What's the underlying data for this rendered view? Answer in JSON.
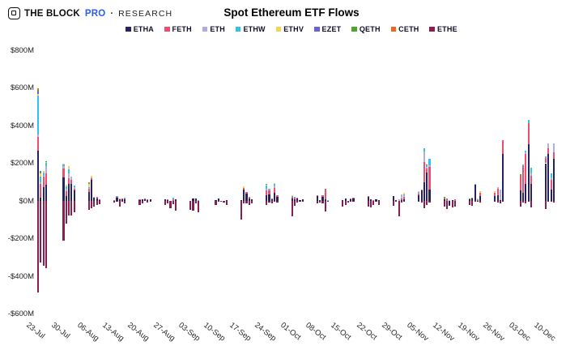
{
  "header": {
    "brand_block": "THE BLOCK",
    "brand_pro": "PRO",
    "brand_separator": "·",
    "brand_research": "RESEARCH"
  },
  "chart_data": {
    "type": "bar",
    "variant": "stacked-daily-flows",
    "title": "Spot Ethereum ETF Flows",
    "unit": "USD millions",
    "grid": false,
    "legend_position": "top-center",
    "ylim": [
      -600,
      800
    ],
    "y_ticks": [
      {
        "value": 800,
        "label": "$800M"
      },
      {
        "value": 600,
        "label": "$600M"
      },
      {
        "value": 400,
        "label": "$400M"
      },
      {
        "value": 200,
        "label": "$200M"
      },
      {
        "value": 0,
        "label": "$0M"
      },
      {
        "value": -200,
        "label": "-$200M"
      },
      {
        "value": -400,
        "label": "-$400M"
      },
      {
        "value": -600,
        "label": "-$600M"
      }
    ],
    "series": [
      {
        "name": "ETHA",
        "color": "#262262"
      },
      {
        "name": "FETH",
        "color": "#ee4d6e"
      },
      {
        "name": "ETH",
        "color": "#b3ace1"
      },
      {
        "name": "ETHW",
        "color": "#2fc1f1"
      },
      {
        "name": "ETHV",
        "color": "#f6d54a"
      },
      {
        "name": "EZET",
        "color": "#6a63cf"
      },
      {
        "name": "QETH",
        "color": "#4ca62a"
      },
      {
        "name": "CETH",
        "color": "#f26522"
      },
      {
        "name": "ETHE",
        "color": "#8c1d4e"
      }
    ],
    "weeks": [
      {
        "label": "23-Jul",
        "bars": [
          [
            266.5,
            71.3,
            15.2,
            204,
            10.7,
            13.2,
            10.2,
            7.5,
            -484.9
          ],
          [
            17.4,
            74.5,
            7.8,
            29.6,
            19.8,
            2.5,
            5.7,
            0,
            -326.9
          ],
          [
            71,
            58.3,
            5,
            16.3,
            8,
            0,
            0,
            0,
            -346.2
          ],
          [
            87.2,
            58.1,
            39,
            16,
            5,
            0,
            4,
            0,
            -356.3
          ]
        ]
      },
      {
        "label": "30-Jul",
        "bars": [
          [
            124.1,
            46.2,
            13.3,
            10.1,
            4,
            0,
            0,
            0,
            -210
          ],
          [
            26,
            25,
            15,
            10,
            8,
            0,
            0,
            0,
            -120.3
          ],
          [
            89.6,
            31.8,
            25,
            20.2,
            17.9,
            0,
            0,
            0,
            -78
          ],
          [
            89.7,
            22.9,
            15,
            0,
            0,
            0,
            0,
            0,
            -78
          ],
          [
            54.9,
            10,
            10,
            5,
            0,
            0,
            0,
            0,
            -61.4
          ]
        ]
      },
      {
        "label": "06-Aug",
        "bars": [
          [
            47.1,
            16.2,
            7.6,
            2.9,
            16.6,
            0,
            4.7,
            1.7,
            -46.8
          ],
          [
            109.9,
            11.7,
            4,
            0,
            7.6,
            0,
            0,
            0,
            -39.7
          ],
          [
            17,
            0,
            5,
            0,
            0,
            0,
            0,
            0,
            -31.9
          ],
          [
            15,
            6,
            0,
            0,
            0,
            0,
            0,
            0,
            -20
          ],
          [
            5,
            2,
            0,
            0,
            0,
            0,
            0,
            0,
            -15.5
          ]
        ]
      },
      {
        "label": "13-Aug",
        "bars": [
          [
            4,
            2,
            0,
            0,
            0,
            0,
            0,
            0,
            -10
          ],
          [
            16.2,
            8.1,
            0,
            2,
            0,
            0,
            0,
            0,
            -2
          ],
          [
            10,
            0,
            3,
            0,
            0,
            0,
            0,
            0,
            -31
          ],
          [
            10.8,
            3,
            0,
            0,
            0,
            0,
            0,
            0,
            -5
          ],
          [
            9.4,
            5.3,
            0,
            2,
            0,
            0,
            0,
            0,
            -14
          ]
        ]
      },
      {
        "label": "20-Aug",
        "bars": [
          [
            5,
            2,
            0,
            0,
            0,
            0,
            0,
            0,
            -20.5
          ],
          [
            6.8,
            0,
            0,
            0,
            0,
            0,
            0,
            0,
            -13.3
          ],
          [
            9,
            6,
            0,
            0,
            0,
            0,
            0,
            0,
            0
          ],
          [
            8,
            2,
            0,
            0,
            0,
            0,
            0,
            0,
            -9.2
          ],
          [
            7.2,
            0,
            0,
            0,
            0,
            0,
            0,
            0,
            -1.4
          ]
        ]
      },
      {
        "label": "27-Aug",
        "bars": [
          [
            8.5,
            0,
            0,
            0,
            0,
            0,
            0,
            0,
            -21.7
          ],
          [
            5,
            4,
            0,
            0,
            0,
            0,
            0,
            0,
            -12.4
          ],
          [
            0,
            0,
            0,
            0,
            0,
            0,
            0,
            0,
            -37.5
          ],
          [
            0,
            10,
            0,
            5.9,
            0,
            0,
            0,
            0,
            -17.7
          ],
          [
            8.4,
            0,
            0,
            0,
            0,
            0,
            0,
            0,
            -52.3
          ]
        ]
      },
      {
        "label": "03-Sep",
        "bars": [
          [
            0,
            0,
            0,
            0,
            0,
            0,
            0,
            0,
            -47.4
          ],
          [
            14.6,
            0,
            0,
            0,
            0,
            0,
            0,
            0,
            -52.1
          ],
          [
            12.5,
            0,
            0,
            0,
            0,
            0,
            0,
            0,
            -12.9
          ],
          [
            0,
            0,
            0,
            4.2,
            0,
            0,
            0,
            0,
            -60.3
          ]
        ]
      },
      {
        "label": "10-Sep",
        "bars": [
          [
            4,
            0,
            0,
            0,
            0,
            0,
            0,
            0,
            -22.6
          ],
          [
            11.4,
            0,
            0,
            0,
            0,
            0,
            0,
            0,
            -5
          ],
          [
            0,
            0,
            0,
            0,
            0,
            0,
            0,
            0,
            -0.5
          ],
          [
            0,
            0,
            0,
            0,
            0,
            0,
            0,
            0,
            -9.7
          ],
          [
            5,
            0,
            0,
            0,
            0,
            0,
            0,
            0,
            -20.1
          ]
        ]
      },
      {
        "label": "17-Sep",
        "bars": [
          [
            5,
            0,
            0,
            0,
            0,
            0,
            0,
            0,
            -98
          ],
          [
            60,
            10,
            0,
            0,
            6,
            0,
            0,
            0,
            -15
          ],
          [
            40,
            8,
            0,
            0,
            0,
            0,
            0,
            0,
            -15
          ],
          [
            15,
            5,
            0,
            0,
            0,
            0,
            0,
            0,
            -20
          ],
          [
            10,
            0,
            0,
            0,
            0,
            0,
            0,
            0,
            -12
          ]
        ]
      },
      {
        "label": "24-Sep",
        "bars": [
          [
            30,
            25,
            10,
            15,
            5,
            0,
            5,
            0,
            -21
          ],
          [
            35,
            20,
            5,
            3,
            0,
            0,
            0,
            0,
            -10
          ],
          [
            10,
            5,
            0,
            0,
            0,
            0,
            0,
            0,
            -15
          ],
          [
            45,
            25,
            10,
            10,
            5,
            0,
            0,
            0,
            -3
          ],
          [
            20,
            8,
            0,
            0,
            0,
            0,
            0,
            0,
            -10
          ]
        ]
      },
      {
        "label": "01-Oct",
        "bars": [
          [
            15,
            5,
            0,
            5,
            3,
            0,
            0,
            0,
            -80.6
          ],
          [
            10,
            8,
            0,
            5,
            0,
            0,
            0,
            0,
            -26.6
          ],
          [
            12,
            6,
            0,
            0,
            0,
            0,
            0,
            0,
            -10
          ],
          [
            5,
            0,
            0,
            0,
            0,
            0,
            0,
            0,
            -3.2
          ],
          [
            7.4,
            0,
            0,
            0,
            0,
            0,
            0,
            0,
            -5
          ]
        ]
      },
      {
        "label": "08-Oct",
        "bars": [
          [
            25,
            5,
            0,
            0,
            0,
            0,
            0,
            0,
            -15
          ],
          [
            3,
            0,
            0,
            0,
            0,
            0,
            0,
            0,
            -8.2
          ],
          [
            20,
            10,
            0,
            0,
            0,
            0,
            0,
            0,
            -12
          ],
          [
            10,
            55,
            0,
            0,
            0,
            0,
            0,
            0,
            -57
          ],
          [
            0,
            0,
            0,
            5,
            0,
            0,
            0,
            0,
            -2
          ]
        ]
      },
      {
        "label": "15-Oct",
        "bars": [
          [
            5,
            0,
            0,
            0,
            0,
            0,
            0,
            0,
            -30
          ],
          [
            15,
            0,
            0,
            0,
            0,
            0,
            0,
            0,
            -20
          ],
          [
            0,
            0,
            0,
            0,
            0,
            0,
            0,
            0,
            -8
          ],
          [
            12,
            3,
            0,
            0,
            0,
            0,
            0,
            0,
            -5
          ],
          [
            15,
            3,
            0,
            0,
            0,
            0,
            0,
            0,
            -2
          ]
        ]
      },
      {
        "label": "22-Oct",
        "bars": [
          [
            20,
            5,
            0,
            0,
            0,
            0,
            0,
            0,
            -29
          ],
          [
            10,
            0,
            0,
            0,
            0,
            0,
            0,
            0,
            -34
          ],
          [
            0,
            5,
            0,
            0,
            0,
            0,
            0,
            0,
            -20
          ],
          [
            10,
            0,
            0,
            0,
            0,
            0,
            0,
            0,
            -5
          ],
          [
            5,
            0,
            0,
            0,
            0,
            0,
            0,
            0,
            -20
          ]
        ]
      },
      {
        "label": "29-Oct",
        "bars": [
          [
            25,
            0,
            0,
            0,
            0,
            0,
            0,
            0,
            -25
          ],
          [
            3,
            0,
            0,
            0,
            0,
            0,
            0,
            0,
            -5
          ],
          [
            0,
            0,
            10,
            0,
            0,
            0,
            0,
            0,
            -80
          ],
          [
            5,
            10,
            20,
            0,
            0,
            0,
            0,
            0,
            -10
          ],
          [
            10,
            10,
            10,
            5,
            8,
            0,
            0,
            0,
            -5
          ]
        ]
      },
      {
        "label": "05-Nov",
        "bars": [
          [
            30,
            8,
            5,
            3,
            6,
            0,
            0,
            0,
            -6
          ],
          [
            55,
            5,
            0,
            0,
            0,
            0,
            0,
            0,
            -8
          ],
          [
            100,
            107,
            57,
            17,
            0,
            0,
            0,
            0,
            -37
          ],
          [
            150,
            20,
            10,
            8,
            0,
            0,
            0,
            5,
            -23
          ],
          [
            60,
            120,
            10,
            35,
            0,
            0,
            0,
            0,
            -10
          ]
        ]
      },
      {
        "label": "12-Nov",
        "bars": [
          [
            10,
            5,
            0,
            0,
            0,
            0,
            5,
            0,
            -32
          ],
          [
            0,
            15,
            0,
            0,
            0,
            0,
            0,
            0,
            -45
          ],
          [
            -22,
            0,
            5,
            0,
            0,
            0,
            0,
            0,
            -3
          ],
          [
            5,
            0,
            0,
            0,
            0,
            0,
            0,
            0,
            -35
          ],
          [
            0,
            8,
            0,
            0,
            0,
            0,
            0,
            0,
            -28
          ]
        ]
      },
      {
        "label": "19-Nov",
        "bars": [
          [
            8,
            0,
            0,
            0,
            0,
            0,
            4,
            0,
            -20
          ],
          [
            15,
            3,
            0,
            0,
            0,
            0,
            0,
            0,
            -25
          ],
          [
            85,
            0,
            0,
            5,
            0,
            0,
            0,
            0,
            -5
          ],
          [
            0,
            3,
            0,
            5,
            3,
            0,
            0,
            0,
            -5
          ],
          [
            25,
            20,
            0,
            0,
            8,
            0,
            0,
            0,
            -8
          ]
        ]
      },
      {
        "label": "26-Nov",
        "bars": [
          [
            25,
            20,
            0,
            0,
            8,
            0,
            0,
            0,
            -4
          ],
          [
            30,
            35,
            10,
            0,
            0,
            0,
            0,
            0,
            -10
          ],
          [
            5,
            0,
            55,
            0,
            0,
            0,
            0,
            0,
            -12
          ],
          [
            250,
            72,
            0,
            0,
            0,
            0,
            0,
            0,
            -3
          ]
        ]
      },
      {
        "label": "03-Dec",
        "bars": [
          [
            55,
            80,
            0,
            0,
            0,
            0,
            8,
            0,
            -28
          ],
          [
            45,
            140,
            0,
            10,
            0,
            0,
            0,
            0,
            -8
          ],
          [
            90,
            160,
            10,
            5,
            0,
            0,
            0,
            0,
            -12
          ],
          [
            300,
            115,
            0,
            15,
            0,
            0,
            0,
            0,
            -5
          ],
          [
            90,
            45,
            10,
            30,
            0,
            0,
            0,
            0,
            -35
          ]
        ]
      },
      {
        "label": "10-Dec",
        "bars": [
          [
            200,
            30,
            0,
            8,
            0,
            0,
            0,
            0,
            -45
          ],
          [
            250,
            30,
            25,
            0,
            0,
            0,
            0,
            0,
            -5
          ],
          [
            60,
            50,
            15,
            20,
            0,
            0,
            0,
            0,
            -5
          ],
          [
            225,
            35,
            45,
            0,
            0,
            0,
            0,
            0,
            -8
          ]
        ]
      }
    ]
  }
}
